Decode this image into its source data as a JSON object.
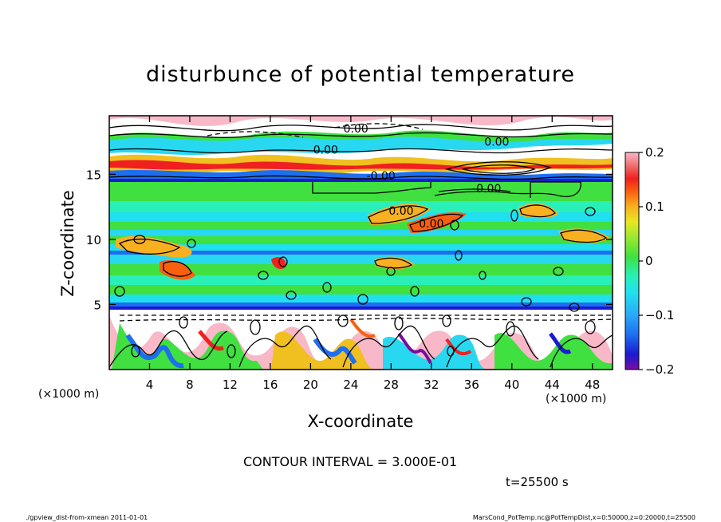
{
  "chart_data": {
    "type": "heatmap",
    "title": "disturbunce of potential temperature",
    "xlabel": "X-coordinate",
    "ylabel": "Z-coordinate",
    "x_unit_left": "(×1000 m)",
    "x_unit_right": "(×1000 m)",
    "xlim": [
      0,
      50
    ],
    "ylim": [
      0,
      19.5
    ],
    "x_ticks": [
      4,
      8,
      12,
      16,
      20,
      24,
      28,
      32,
      36,
      40,
      44,
      48
    ],
    "x_tick_labels": [
      "4",
      "8",
      "12",
      "16",
      "20",
      "24",
      "28",
      "32",
      "36",
      "40",
      "44",
      "48"
    ],
    "y_ticks": [
      5,
      10,
      15
    ],
    "y_tick_labels": [
      "5",
      "10",
      "15"
    ],
    "colorbar": {
      "range": [
        -0.2,
        0.2
      ],
      "ticks": [
        0.2,
        0.1,
        0,
        -0.1,
        -0.2
      ],
      "tick_labels": [
        "0.2",
        "0.1",
        "0",
        "−0.1",
        "−0.2"
      ],
      "colors": [
        "#7a0da0",
        "#1a1ad0",
        "#1e6ef0",
        "#2aa8f8",
        "#20e0f0",
        "#28f0b8",
        "#40e040",
        "#90e830",
        "#e8e820",
        "#f8b020",
        "#f86010",
        "#f02020",
        "#f07070",
        "#f8b8c8"
      ]
    },
    "contour_labels": [
      {
        "text": "0.00",
        "x": 24.5,
        "z": 18.2
      },
      {
        "text": "0.00",
        "x": 21.5,
        "z": 16.6
      },
      {
        "text": "0.00",
        "x": 38.5,
        "z": 17.2
      },
      {
        "text": "-0.00",
        "x": 27.0,
        "z": 14.6
      },
      {
        "text": "-0.00",
        "x": 37.5,
        "z": 13.6
      },
      {
        "text": "0.00",
        "x": 29.0,
        "z": 11.9
      },
      {
        "text": "0.00",
        "x": 32.0,
        "z": 10.9
      }
    ],
    "contour_interval_text": "CONTOUR INTERVAL = 3.000E-01",
    "time_text": "t=25500 s"
  },
  "footer": {
    "left": "./gpview_dist-from-xmean   2011-01-01",
    "right": "MarsCond_PotTemp.nc@PotTempDist,x=0:50000,z=0:20000,t=25500"
  }
}
